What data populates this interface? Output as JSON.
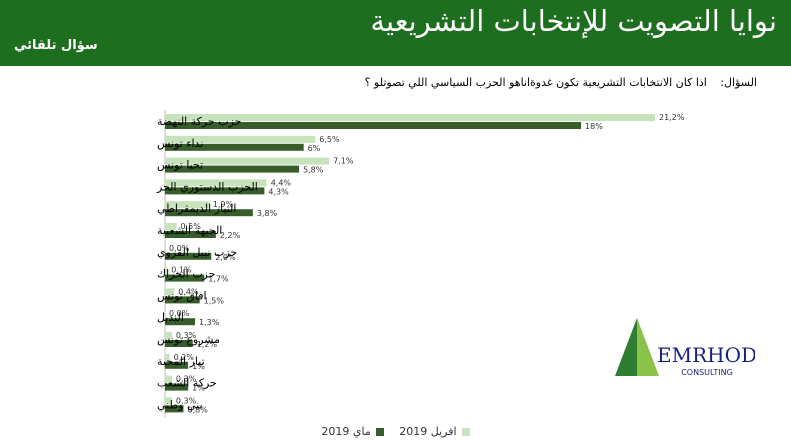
{
  "header": {
    "title": "نوايا التصويت للإنتخابات التشريعية",
    "tag": "سؤال تلقائي"
  },
  "question": {
    "label": "السؤال:",
    "text": "اذا كان الانتخابات  التشريعية تكون غدوةاناهو الحزب السياسي اللي تصوتلو ؟"
  },
  "logo": {
    "name": "EMRHOD",
    "subtitle": "CONSULTING"
  },
  "colors": {
    "header": "#1d6e1f",
    "april": "#c6e3bb",
    "may": "#375d2a"
  },
  "chart_data": {
    "type": "bar",
    "orientation": "horizontal",
    "categories": [
      "حزب حركة النهضة",
      "نداء تونس",
      "تحيا تونس",
      "الحزب الدستوري الحر",
      "التيار الديمقراطي",
      "الجبهة الشعبية",
      "حزب نبيل القروي",
      "حزب الحراك",
      "افاق تونس",
      "البديل",
      "مشروع تونس",
      "تيار المحبة",
      "حركة الشعب",
      "بني وطني"
    ],
    "series": [
      {
        "name": "افريل 2019",
        "values": [
          21.2,
          6.5,
          7.1,
          4.4,
          1.9,
          0.5,
          0.0,
          0.1,
          0.4,
          0.0,
          0.3,
          0.2,
          0.3,
          0.3
        ],
        "labels": [
          "21,2%",
          "6,5%",
          "7,1%",
          "4,4%",
          "1,9%",
          "0,5%",
          "0,0%",
          "0,1%",
          "0,4%",
          "0,0%",
          "0,3%",
          "0,2%",
          "0,3%",
          "0,3%"
        ]
      },
      {
        "name": "ماي 2019",
        "values": [
          18,
          6,
          5.8,
          4.3,
          3.8,
          2.2,
          2.0,
          1.7,
          1.5,
          1.3,
          1.2,
          1,
          1,
          0.8
        ],
        "labels": [
          "18%",
          "6%",
          "5,8%",
          "4,3%",
          "3,8%",
          "2,2%",
          "2,0%",
          "1,7%",
          "1,5%",
          "1,3%",
          "1,2%",
          "1%",
          "1%",
          "0,8%"
        ]
      }
    ],
    "legend_position": "bottom",
    "grid": false
  }
}
